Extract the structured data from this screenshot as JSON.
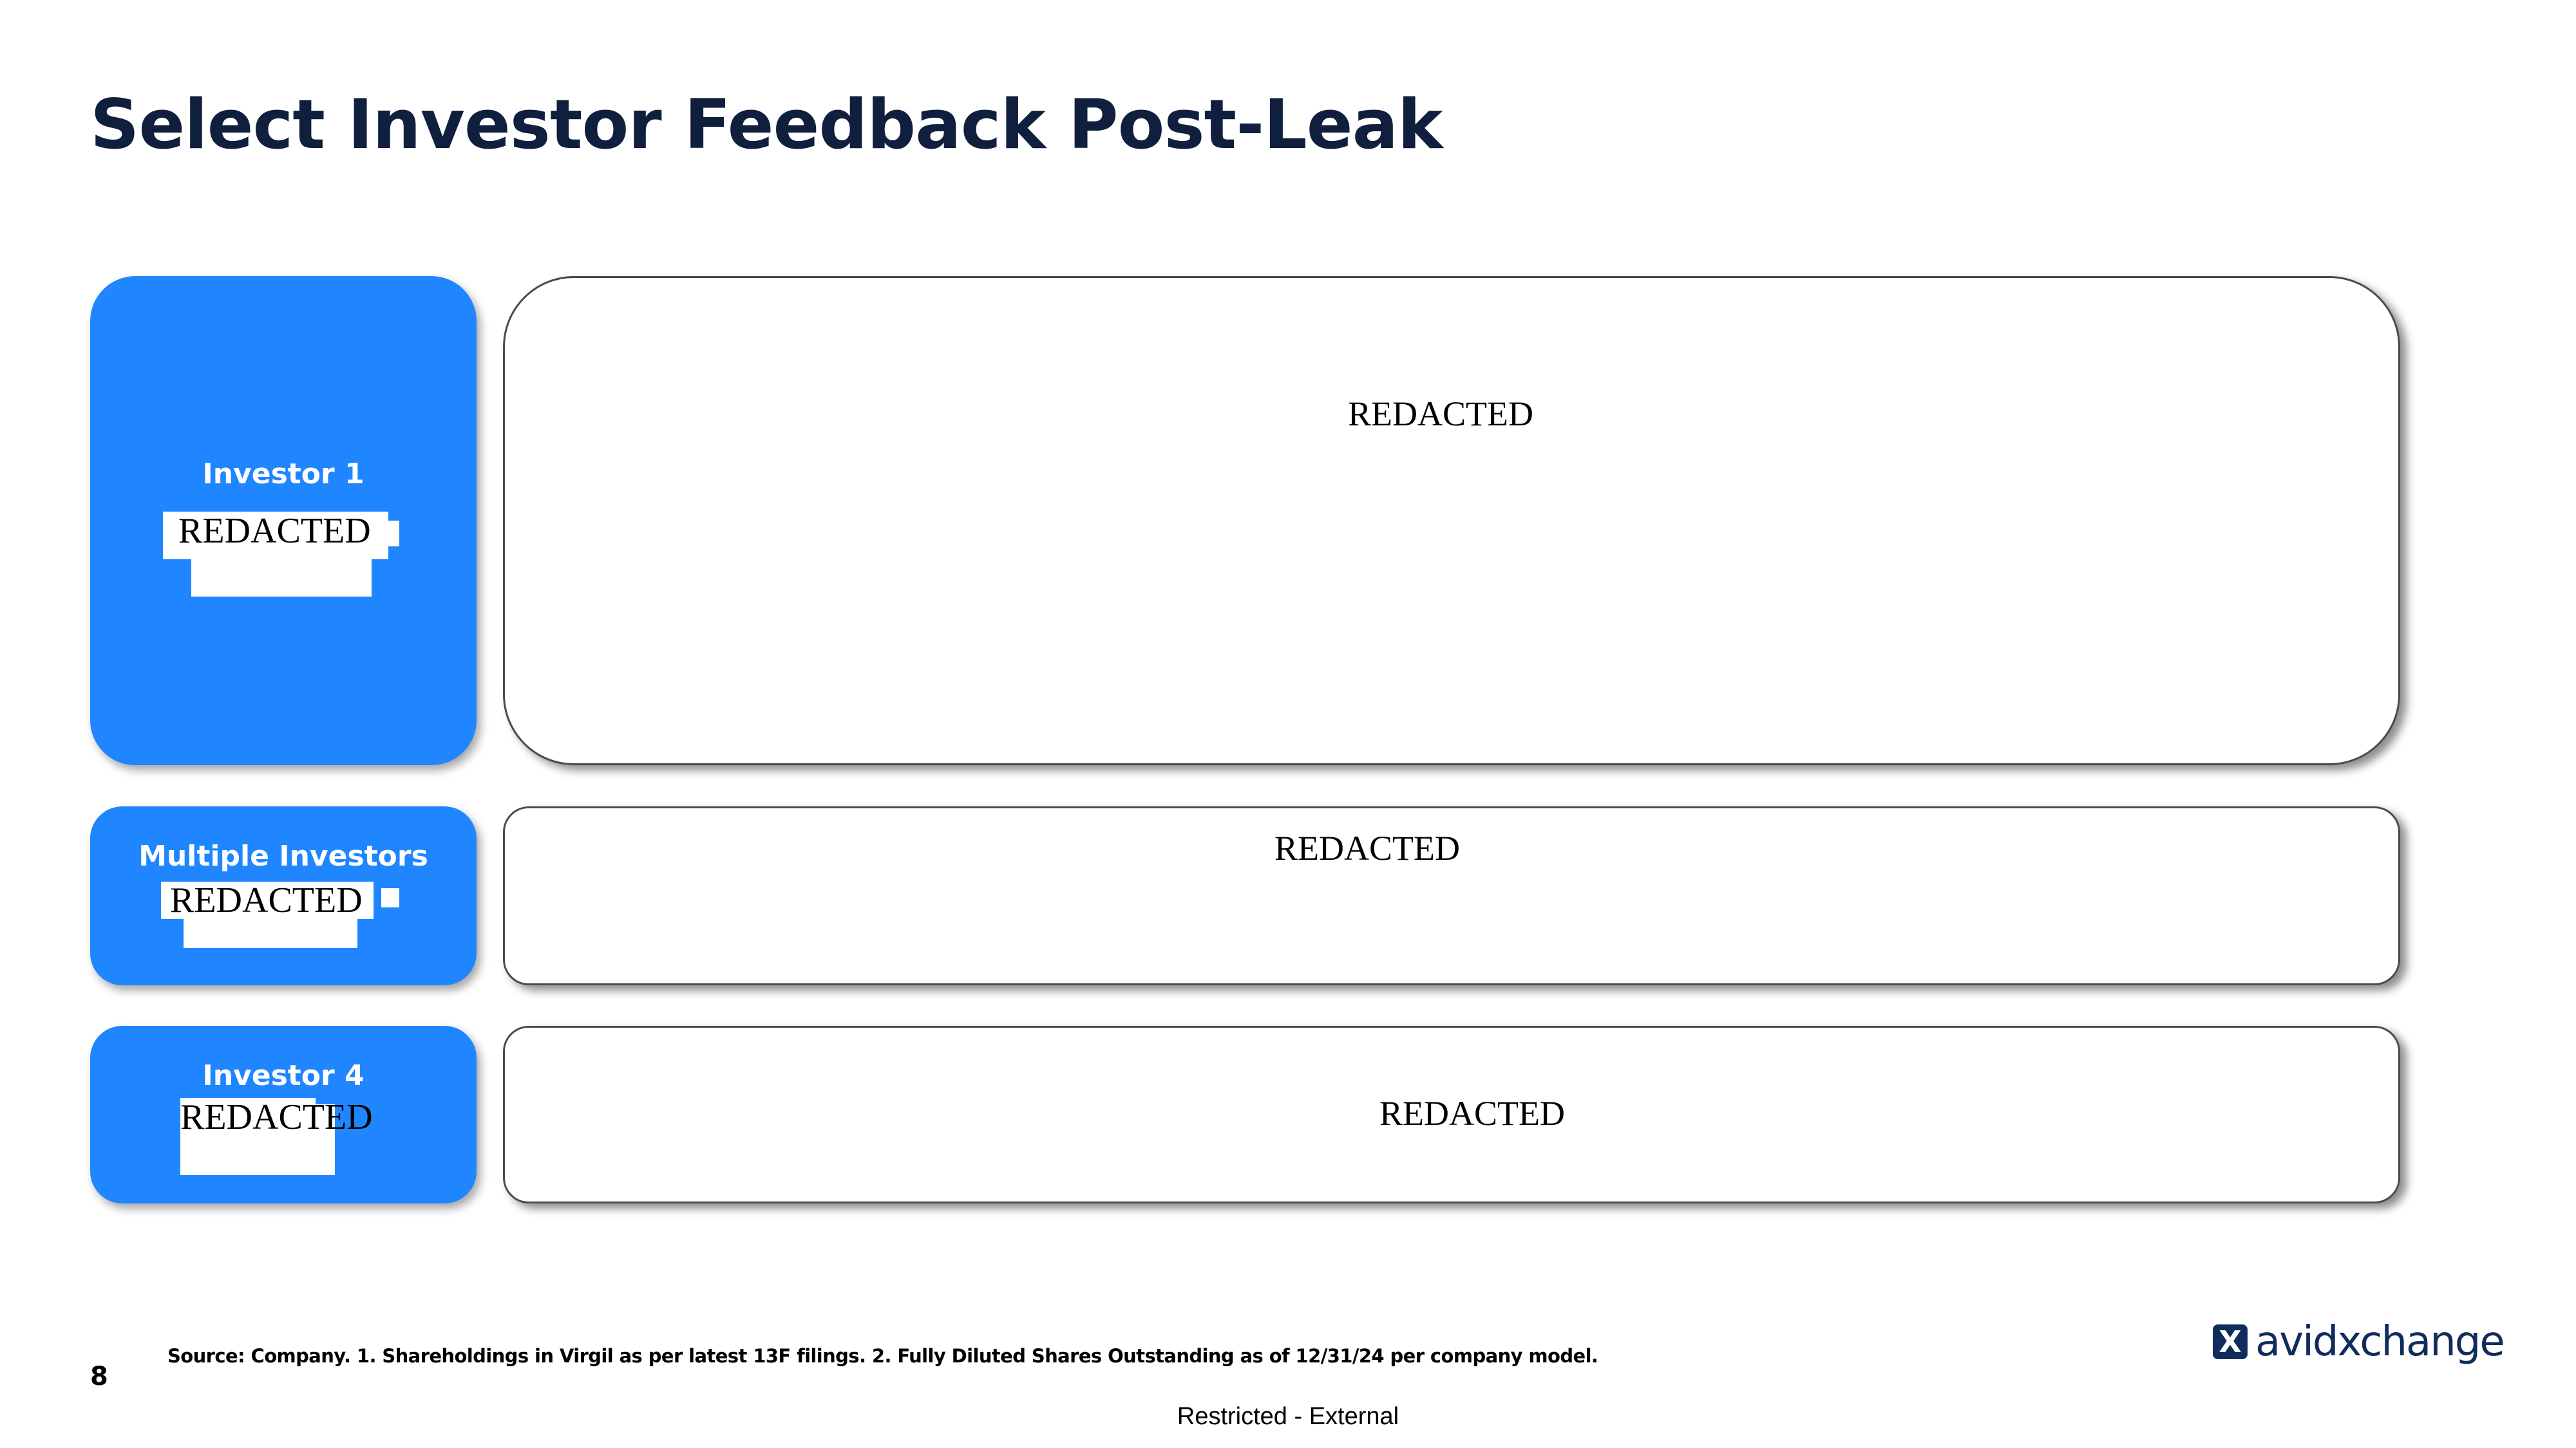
{
  "title": "Select Investor Feedback Post-Leak",
  "rows": [
    {
      "label": "Investor 1",
      "label_redaction": "REDACTED",
      "content": "REDACTED"
    },
    {
      "label": "Multiple Investors",
      "label_redaction": "REDACTED",
      "content": "REDACTED"
    },
    {
      "label": "Investor 4",
      "label_redaction": "REDACTED",
      "content": "REDACTED"
    }
  ],
  "footer": {
    "page_number": "8",
    "source": "Source: Company. 1. Shareholdings in Virgil as per latest 13F filings. 2. Fully Diluted Shares Outstanding as of 12/31/24 per company model.",
    "classification": "Restricted - External",
    "logo_text": "avidxchange"
  },
  "colors": {
    "accent": "#1f86ff",
    "title": "#0f1f3d",
    "logo": "#0f2c5c"
  }
}
